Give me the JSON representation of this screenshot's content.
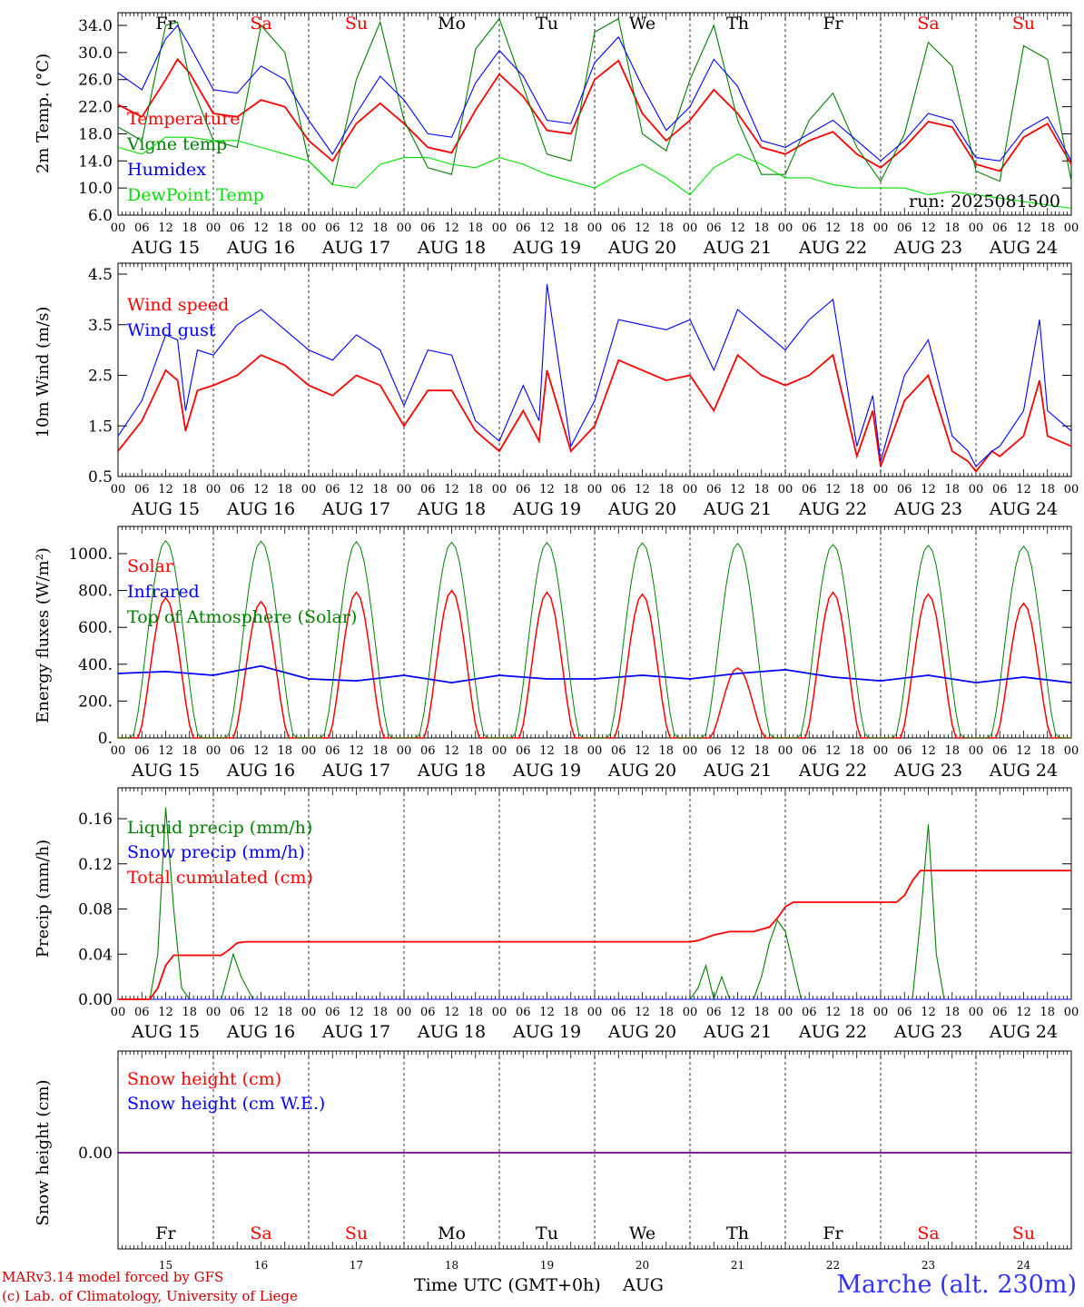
{
  "days": [
    "AUG 15",
    "AUG 16",
    "AUG 17",
    "AUG 18",
    "AUG 19",
    "AUG 20",
    "AUG 21",
    "AUG 22",
    "AUG 23",
    "AUG 24"
  ],
  "day_numbers": [
    "15",
    "16",
    "17",
    "18",
    "19",
    "20",
    "21",
    "22",
    "23",
    "24"
  ],
  "weekdays": [
    "Fr",
    "Sa",
    "Su",
    "Mo",
    "Tu",
    "We",
    "Th",
    "Fr",
    "Sa",
    "Su"
  ],
  "weekday_colors": [
    "#000000",
    "#ff0000",
    "#ff0000",
    "#000000",
    "#000000",
    "#000000",
    "#000000",
    "#000000",
    "#ff0000",
    "#ff0000"
  ],
  "hour_ticks": [
    "00",
    "06",
    "12",
    "18"
  ],
  "final_tick": "00",
  "run_label": "run: 2025081500",
  "footer": {
    "model": "MARv3.14 model forced by GFS",
    "lab": "(c) Lab. of Climatology, University of Liege",
    "xlabel": "Time UTC (GMT+0h)",
    "month": "AUG",
    "station": "Marche (alt. 230m)"
  },
  "chart_data": [
    {
      "type": "line",
      "ylabel": "2m Temp. (°C)",
      "ylim": [
        6,
        36
      ],
      "yticks": [
        "6.0",
        "10.0",
        "14.0",
        "18.0",
        "22.0",
        "26.0",
        "30.0",
        "34.0"
      ],
      "grid": "vertical day lines dashed",
      "legend_position": "left",
      "series": [
        {
          "name": "Temperature",
          "color": "#ff0000",
          "x": [
            0,
            6,
            12,
            15,
            18,
            24,
            30,
            36,
            42,
            48,
            54,
            60,
            66,
            72,
            78,
            84,
            90,
            96,
            102,
            108,
            114,
            120,
            126,
            132,
            138,
            144,
            150,
            156,
            162,
            168,
            174,
            180,
            186,
            192,
            198,
            204,
            210,
            216,
            222,
            228,
            234,
            240
          ],
          "values": [
            22.3,
            20.5,
            26.0,
            29.0,
            27.0,
            21.0,
            20.5,
            23.0,
            22.0,
            17.0,
            14.0,
            19.5,
            22.5,
            19.5,
            16.0,
            15.2,
            21.5,
            26.8,
            23.5,
            18.5,
            18.0,
            26.0,
            28.8,
            21.0,
            17.0,
            20.0,
            24.5,
            21.0,
            16.0,
            15.0,
            17.0,
            18.3,
            15.0,
            13.0,
            16.0,
            19.8,
            19.0,
            13.5,
            12.5,
            17.5,
            19.5,
            13.5
          ]
        },
        {
          "name": "Vigne temp",
          "color": "#008000",
          "x": [
            0,
            6,
            12,
            15,
            18,
            24,
            30,
            36,
            42,
            48,
            54,
            60,
            66,
            72,
            78,
            84,
            90,
            96,
            102,
            108,
            114,
            120,
            126,
            132,
            138,
            144,
            150,
            156,
            162,
            168,
            174,
            180,
            186,
            192,
            198,
            204,
            210,
            216,
            222,
            228,
            234,
            240
          ],
          "values": [
            19.0,
            17.0,
            34.0,
            34.5,
            26.0,
            17.0,
            16.0,
            34.0,
            30.0,
            14.0,
            10.5,
            26.0,
            34.5,
            20.0,
            13.0,
            12.0,
            30.5,
            35.0,
            25.0,
            15.0,
            14.0,
            33.0,
            35.0,
            18.0,
            15.5,
            26.0,
            34.0,
            20.0,
            12.0,
            12.0,
            20.0,
            24.0,
            16.0,
            11.0,
            18.0,
            31.5,
            28.0,
            12.5,
            11.0,
            31.0,
            29.0,
            11.0
          ]
        },
        {
          "name": "Humidex",
          "color": "#0000ff",
          "x": [
            0,
            6,
            12,
            15,
            18,
            24,
            30,
            36,
            42,
            48,
            54,
            60,
            66,
            72,
            78,
            84,
            90,
            96,
            102,
            108,
            114,
            120,
            126,
            132,
            138,
            144,
            150,
            156,
            162,
            168,
            174,
            180,
            186,
            192,
            198,
            204,
            210,
            216,
            222,
            228,
            234,
            240
          ],
          "values": [
            27.0,
            24.5,
            32.0,
            34.0,
            31.0,
            24.5,
            24.0,
            28.0,
            26.0,
            20.0,
            15.0,
            21.0,
            26.5,
            23.0,
            18.0,
            17.5,
            25.5,
            30.3,
            26.5,
            20.0,
            19.5,
            28.5,
            32.3,
            25.0,
            18.5,
            22.0,
            29.0,
            25.0,
            17.0,
            16.0,
            18.0,
            20.0,
            17.0,
            14.0,
            17.0,
            21.0,
            20.0,
            14.5,
            14.0,
            18.5,
            20.5,
            14.0
          ]
        },
        {
          "name": "DewPoint Temp",
          "color": "#00e000",
          "x": [
            0,
            6,
            12,
            18,
            24,
            30,
            36,
            42,
            48,
            54,
            60,
            66,
            72,
            78,
            84,
            90,
            96,
            102,
            108,
            114,
            120,
            126,
            132,
            138,
            144,
            150,
            156,
            162,
            168,
            174,
            180,
            186,
            192,
            198,
            204,
            210,
            216,
            222,
            228,
            234,
            240
          ],
          "values": [
            16.0,
            15.0,
            17.5,
            17.5,
            17.0,
            17.0,
            16.0,
            15.0,
            14.0,
            10.5,
            10.0,
            13.5,
            14.5,
            14.5,
            13.5,
            13.0,
            14.5,
            13.5,
            12.0,
            11.0,
            10.0,
            12.0,
            13.5,
            11.5,
            9.0,
            13.0,
            15.0,
            13.5,
            11.5,
            11.5,
            10.5,
            10.0,
            10.0,
            10.0,
            9.0,
            9.5,
            9.0,
            8.5,
            8.0,
            7.5,
            7.0
          ]
        }
      ]
    },
    {
      "type": "line",
      "ylabel": "10m Wind (m/s)",
      "ylim": [
        0.5,
        4.5
      ],
      "yticks": [
        "0.5",
        "1.5",
        "2.5",
        "3.5",
        "4.5"
      ],
      "grid": "vertical day lines dashed",
      "legend_position": "left",
      "series": [
        {
          "name": "Wind speed",
          "color": "#ff0000",
          "x": [
            0,
            6,
            12,
            15,
            17,
            20,
            24,
            30,
            36,
            42,
            48,
            54,
            60,
            66,
            72,
            78,
            84,
            90,
            96,
            102,
            106,
            108,
            114,
            120,
            126,
            132,
            138,
            144,
            150,
            156,
            162,
            168,
            174,
            180,
            186,
            190,
            192,
            198,
            204,
            210,
            214,
            216,
            220,
            222,
            228,
            232,
            234,
            240
          ],
          "values": [
            1.0,
            1.6,
            2.6,
            2.4,
            1.4,
            2.2,
            2.3,
            2.5,
            2.9,
            2.7,
            2.3,
            2.1,
            2.5,
            2.3,
            1.5,
            2.2,
            2.2,
            1.4,
            1.0,
            1.8,
            1.2,
            2.6,
            1.0,
            1.5,
            2.8,
            2.6,
            2.4,
            2.5,
            1.8,
            2.9,
            2.5,
            2.3,
            2.5,
            2.9,
            0.9,
            1.8,
            0.7,
            2.0,
            2.5,
            1.0,
            0.8,
            0.6,
            1.0,
            0.9,
            1.3,
            2.4,
            1.3,
            1.1
          ]
        },
        {
          "name": "Wind gust",
          "color": "#0000ff",
          "x": [
            0,
            6,
            12,
            15,
            17,
            20,
            24,
            30,
            36,
            42,
            48,
            54,
            60,
            66,
            72,
            78,
            84,
            90,
            96,
            102,
            106,
            108,
            114,
            120,
            126,
            132,
            138,
            144,
            150,
            156,
            162,
            168,
            174,
            180,
            186,
            190,
            192,
            198,
            204,
            210,
            214,
            216,
            220,
            222,
            228,
            232,
            234,
            240
          ],
          "values": [
            1.3,
            2.0,
            3.3,
            3.2,
            1.8,
            3.0,
            2.9,
            3.5,
            3.8,
            3.4,
            3.0,
            2.8,
            3.3,
            3.0,
            1.9,
            3.0,
            2.9,
            1.6,
            1.2,
            2.3,
            1.6,
            4.3,
            1.1,
            2.0,
            3.6,
            3.5,
            3.4,
            3.6,
            2.6,
            3.8,
            3.4,
            3.0,
            3.6,
            4.0,
            1.1,
            2.1,
            0.8,
            2.5,
            3.2,
            1.3,
            1.0,
            0.7,
            1.0,
            1.1,
            1.8,
            3.6,
            1.8,
            1.4
          ]
        }
      ]
    },
    {
      "type": "line",
      "ylabel": "Energy fluxes (W/m²)",
      "ylim": [
        0,
        1100
      ],
      "yticks": [
        "0.",
        "200.",
        "400.",
        "600.",
        "800.",
        "1000."
      ],
      "grid": "vertical day lines dashed",
      "legend_position": "left",
      "series": [
        {
          "name": "Solar",
          "color": "#ff0000",
          "daily_peak": [
            760,
            740,
            790,
            800,
            790,
            780,
            380,
            790,
            780,
            730
          ]
        },
        {
          "name": "Infrared",
          "color": "#0000ff",
          "x": [
            0,
            12,
            24,
            36,
            48,
            60,
            72,
            84,
            96,
            108,
            120,
            132,
            144,
            156,
            168,
            180,
            192,
            204,
            216,
            228,
            240
          ],
          "values": [
            350,
            360,
            340,
            390,
            320,
            310,
            340,
            300,
            340,
            320,
            320,
            340,
            320,
            350,
            370,
            330,
            310,
            340,
            300,
            330,
            300
          ]
        },
        {
          "name": "Top of Atmosphere (Solar)",
          "color": "#008000",
          "daily_peak": [
            1070,
            1068,
            1065,
            1062,
            1060,
            1058,
            1055,
            1050,
            1045,
            1040
          ]
        }
      ]
    },
    {
      "type": "line",
      "ylabel": "Precip (mm/h)",
      "ylim": [
        0,
        0.18
      ],
      "yticks": [
        "0.00",
        "0.04",
        "0.08",
        "0.12",
        "0.16"
      ],
      "grid": "vertical day lines dashed",
      "legend_position": "left",
      "series": [
        {
          "name": "Liquid precip (mm/h)",
          "color": "#008000",
          "x": [
            0,
            8,
            10,
            12,
            14,
            16,
            18,
            26,
            29,
            31,
            34,
            36,
            144,
            146,
            148,
            150,
            152,
            154,
            156,
            160,
            162,
            164,
            166,
            168,
            170,
            172,
            174,
            200,
            202,
            204,
            206,
            208,
            240
          ],
          "values": [
            0,
            0,
            0.04,
            0.17,
            0.08,
            0.01,
            0,
            0,
            0.04,
            0.02,
            0,
            0,
            0,
            0.01,
            0.03,
            0,
            0.02,
            0,
            0,
            0,
            0.02,
            0.05,
            0.07,
            0.06,
            0.03,
            0,
            0,
            0,
            0.07,
            0.155,
            0.04,
            0,
            0
          ]
        },
        {
          "name": "Snow precip (mm/h)",
          "color": "#0000ff",
          "x": [
            0,
            240
          ],
          "values": [
            0,
            0
          ]
        },
        {
          "name": "Total cumulated (cm)",
          "color": "#ff0000",
          "x": [
            0,
            8,
            10,
            12,
            14,
            16,
            26,
            28,
            30,
            32,
            34,
            144,
            146,
            150,
            154,
            160,
            164,
            166,
            168,
            170,
            176,
            196,
            198,
            200,
            202,
            240
          ],
          "values": [
            0,
            0,
            0.01,
            0.03,
            0.039,
            0.039,
            0.039,
            0.044,
            0.05,
            0.051,
            0.051,
            0.051,
            0.052,
            0.057,
            0.06,
            0.06,
            0.064,
            0.072,
            0.082,
            0.086,
            0.086,
            0.086,
            0.092,
            0.105,
            0.114,
            0.114
          ]
        }
      ]
    },
    {
      "type": "line",
      "ylabel": "Snow height (cm)",
      "yticks": [
        "0.00"
      ],
      "grid": "vertical day lines dashed",
      "legend_position": "left",
      "series": [
        {
          "name": "Snow height (cm)",
          "color": "#ff0000",
          "x": [
            0,
            240
          ],
          "values": [
            0,
            0
          ]
        },
        {
          "name": "Snow height (cm W.E.)",
          "color": "#0000ff",
          "x": [
            0,
            240
          ],
          "values": [
            0,
            0
          ]
        }
      ]
    }
  ]
}
